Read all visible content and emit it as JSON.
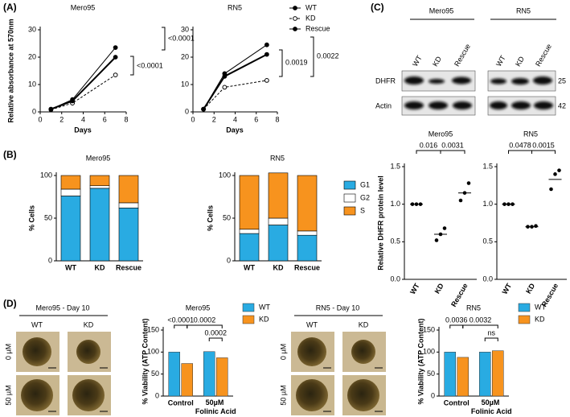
{
  "figure": {
    "panel_labels": [
      "(A)",
      "(B)",
      "(C)",
      "(D)"
    ],
    "blot": {
      "groups": [
        "Mero95",
        "RN5"
      ],
      "lanes": [
        "WT",
        "KD",
        "Rescue"
      ],
      "rows": [
        "DHFR",
        "Actin"
      ],
      "sizes": [
        "25",
        "42"
      ]
    },
    "spheroids": [
      {
        "title": "Mero95  -  Day 10",
        "columns": [
          "WT",
          "KD"
        ],
        "rows": [
          "0 µM",
          "50 µM"
        ]
      },
      {
        "title": "RN5  -  Day 10",
        "columns": [
          "WT",
          "KD"
        ],
        "rows": [
          "0 µM",
          "50 µM"
        ]
      }
    ]
  },
  "chart_data": [
    {
      "type": "line",
      "title": "Mero95",
      "x": [
        1,
        3,
        7
      ],
      "xlim": [
        0,
        8
      ],
      "xticks": [
        0,
        2,
        4,
        6,
        8
      ],
      "ylim": [
        0,
        30
      ],
      "yticks": [
        0,
        10,
        20,
        30
      ],
      "x_label": "Days",
      "y_label": "Relative absorbance at 570nm",
      "series": [
        {
          "name": "WT",
          "color": "#000000",
          "line_style": "solid",
          "line_width": 1,
          "marker": "filled",
          "values": [
            1,
            4.5,
            23.5
          ]
        },
        {
          "name": "KD",
          "color": "#000000",
          "line_style": "dashed",
          "line_width": 1,
          "marker": "open",
          "values": [
            0.8,
            3.2,
            13.5
          ]
        },
        {
          "name": "Rescue",
          "color": "#000000",
          "line_style": "solid",
          "line_width": 2,
          "marker": "filled",
          "values": [
            1,
            4,
            20
          ]
        }
      ],
      "annotations": [
        "<0.0001",
        "<0.0001"
      ],
      "legend": false
    },
    {
      "type": "line",
      "title": "RN5",
      "x": [
        1,
        3,
        7
      ],
      "xlim": [
        0,
        8
      ],
      "xticks": [
        0,
        2,
        4,
        6,
        8
      ],
      "ylim": [
        0,
        30
      ],
      "yticks": [
        0,
        10,
        20,
        30
      ],
      "x_label": "Days",
      "series": [
        {
          "name": "WT",
          "color": "#000000",
          "line_style": "solid",
          "line_width": 1,
          "marker": "filled",
          "values": [
            1,
            14,
            24.5
          ]
        },
        {
          "name": "KD",
          "color": "#000000",
          "line_style": "dashed",
          "line_width": 1,
          "marker": "open",
          "values": [
            1,
            9,
            11.5
          ]
        },
        {
          "name": "Rescue",
          "color": "#000000",
          "line_style": "solid",
          "line_width": 2,
          "marker": "filled",
          "values": [
            1,
            13,
            21
          ]
        }
      ],
      "annotations": [
        "0.0019",
        "0.0022"
      ],
      "legend": "upper right"
    },
    {
      "type": "stacked_bar",
      "title": "Mero95",
      "categories": [
        "WT",
        "KD",
        "Rescue"
      ],
      "ylim": [
        0,
        100
      ],
      "yticks": [
        0,
        50,
        100
      ],
      "y_label": "% Cells",
      "series": [
        {
          "name": "G1",
          "color": "#29abe2",
          "values": [
            76,
            85,
            62
          ]
        },
        {
          "name": "G2",
          "color": "#ffffff",
          "values": [
            8,
            3,
            6
          ]
        },
        {
          "name": "S",
          "color": "#f7931e",
          "values": [
            16,
            12,
            32
          ]
        }
      ],
      "legend": false
    },
    {
      "type": "stacked_bar",
      "title": "RN5",
      "categories": [
        "WT",
        "KD",
        "Rescue"
      ],
      "ylim": [
        0,
        100
      ],
      "yticks": [
        0,
        50,
        100
      ],
      "y_label": "% Cells",
      "series": [
        {
          "name": "G1",
          "color": "#29abe2",
          "values": [
            32,
            42,
            30
          ]
        },
        {
          "name": "G2",
          "color": "#ffffff",
          "values": [
            5,
            8,
            5
          ]
        },
        {
          "name": "S",
          "color": "#f7931e",
          "values": [
            63,
            53,
            65
          ]
        }
      ],
      "legend": "right"
    },
    {
      "type": "dot",
      "title": "Mero95",
      "categories": [
        "WT",
        "KD",
        "Rescue"
      ],
      "values": [
        [
          1,
          1,
          1
        ],
        [
          0.52,
          0.6,
          0.68
        ],
        [
          1.05,
          1.15,
          1.28
        ]
      ],
      "means": [
        1,
        0.6,
        1.15
      ],
      "ylim": [
        0,
        1.5
      ],
      "yticks": [
        {
          "value": 0,
          "label": "0.0"
        },
        {
          "value": 0.5,
          "label": "0.5"
        },
        {
          "value": 1,
          "label": "1.0"
        },
        {
          "value": 1.5,
          "label": "1.5"
        }
      ],
      "y_label": "Relative DHFR protein level",
      "annotations": [
        "0.016",
        "0.0031"
      ]
    },
    {
      "type": "dot",
      "title": "RN5",
      "categories": [
        "WT",
        "KD",
        "Rescue"
      ],
      "values": [
        [
          1,
          1,
          1
        ],
        [
          0.7,
          0.7,
          0.71
        ],
        [
          1.2,
          1.4,
          1.45
        ]
      ],
      "means": [
        1,
        0.7,
        1.33
      ],
      "ylim": [
        0,
        1.5
      ],
      "yticks": [
        {
          "value": 0,
          "label": "0.0"
        },
        {
          "value": 0.5,
          "label": "0.5"
        },
        {
          "value": 1,
          "label": "1.0"
        },
        {
          "value": 1.5,
          "label": "1.5"
        }
      ],
      "annotations": [
        "0.0478",
        "0.0015"
      ]
    },
    {
      "type": "grouped_bar",
      "title": "Mero95",
      "categories": [
        "Control",
        "50µM Folinic Acid"
      ],
      "ylim": [
        0,
        150
      ],
      "yticks": [
        0,
        50,
        100,
        150
      ],
      "y_label": "% Viability (ATP Content)",
      "series": [
        {
          "name": "WT",
          "color": "#29abe2",
          "values": [
            100,
            101
          ]
        },
        {
          "name": "KD",
          "color": "#f7931e",
          "values": [
            74,
            87
          ]
        }
      ],
      "annotations": [
        "<0.0001",
        "0.0002",
        "0.0002"
      ],
      "legend": "right"
    },
    {
      "type": "grouped_bar",
      "title": "RN5",
      "categories": [
        "Control",
        "50µM Folinic Acid"
      ],
      "ylim": [
        0,
        150
      ],
      "yticks": [
        0,
        50,
        100,
        150
      ],
      "y_label": "% Viability (ATP Content)",
      "series": [
        {
          "name": "WT",
          "color": "#29abe2",
          "values": [
            100,
            100
          ]
        },
        {
          "name": "KD",
          "color": "#f7931e",
          "values": [
            88,
            103
          ]
        }
      ],
      "annotations": [
        "0.0036",
        "0.0032",
        "ns"
      ],
      "legend": "right"
    }
  ]
}
